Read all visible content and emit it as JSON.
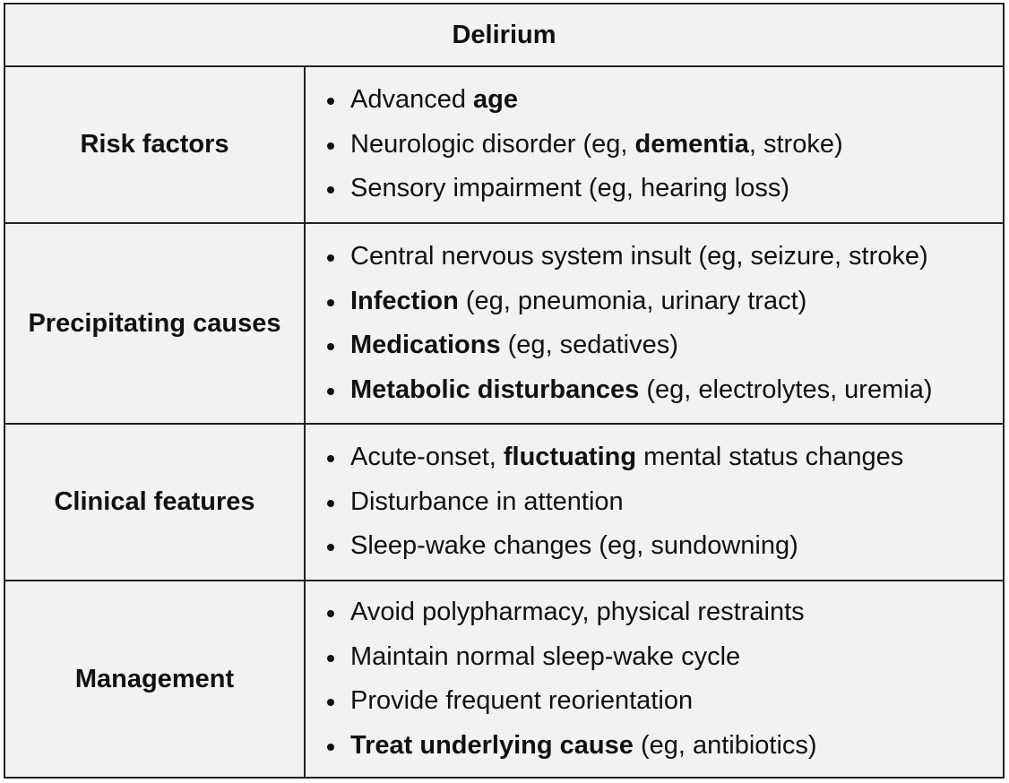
{
  "title": "Delirium",
  "rows": [
    {
      "label": "Risk factors",
      "items": [
        {
          "pre": "Advanced ",
          "bold": "age",
          "post": ""
        },
        {
          "pre": "Neurologic disorder (eg, ",
          "bold": "dementia",
          "post": ", stroke)"
        },
        {
          "pre": "Sensory impairment (eg, hearing loss)",
          "bold": "",
          "post": ""
        }
      ]
    },
    {
      "label": "Precipitating causes",
      "items": [
        {
          "pre": "Central nervous system insult (eg, seizure, stroke)",
          "bold": "",
          "post": ""
        },
        {
          "pre": "",
          "bold": "Infection",
          "post": " (eg, pneumonia, urinary tract)"
        },
        {
          "pre": "",
          "bold": "Medications",
          "post": " (eg, sedatives)"
        },
        {
          "pre": "",
          "bold": "Metabolic disturbances",
          "post": " (eg, electrolytes, uremia)"
        }
      ]
    },
    {
      "label": "Clinical features",
      "items": [
        {
          "pre": "Acute-onset, ",
          "bold": "fluctuating",
          "post": " mental status changes"
        },
        {
          "pre": "Disturbance in attention",
          "bold": "",
          "post": ""
        },
        {
          "pre": "Sleep-wake changes (eg, sundowning)",
          "bold": "",
          "post": ""
        }
      ]
    },
    {
      "label": "Management",
      "items": [
        {
          "pre": "Avoid polypharmacy, physical restraints",
          "bold": "",
          "post": ""
        },
        {
          "pre": "Maintain normal sleep-wake cycle",
          "bold": "",
          "post": ""
        },
        {
          "pre": "Provide frequent reorientation",
          "bold": "",
          "post": ""
        },
        {
          "pre": "",
          "bold": "Treat underlying cause",
          "post": " (eg, antibiotics)"
        }
      ]
    }
  ]
}
